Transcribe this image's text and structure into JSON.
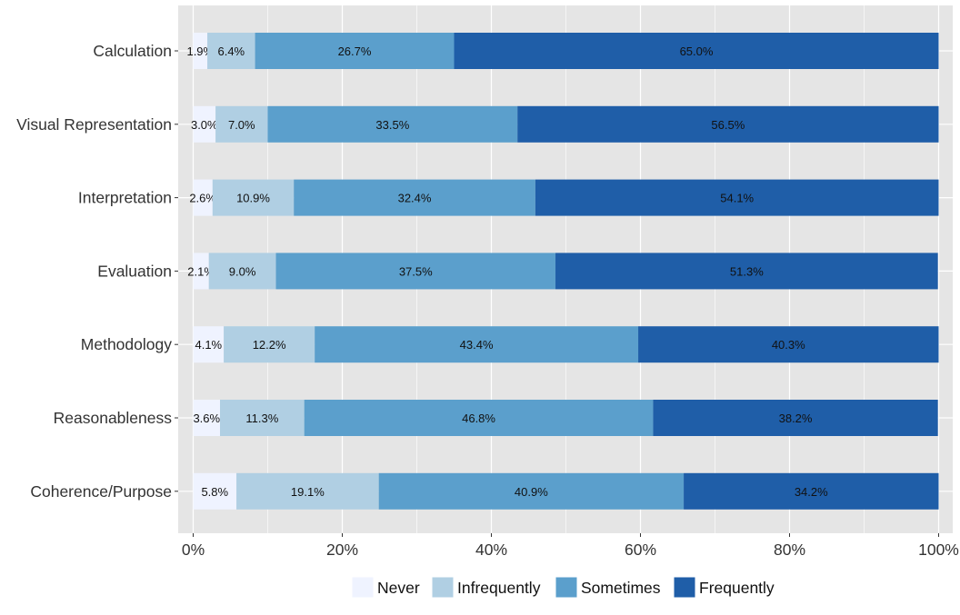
{
  "chart_data": {
    "type": "bar",
    "orientation": "horizontal",
    "stacked": true,
    "title": "",
    "xlabel": "",
    "ylabel": "",
    "xlim": [
      0,
      100
    ],
    "x_ticks": [
      "0%",
      "20%",
      "40%",
      "60%",
      "80%",
      "100%"
    ],
    "x_tick_values": [
      0,
      20,
      40,
      60,
      80,
      100
    ],
    "grid": true,
    "legend_position": "bottom",
    "categories": [
      "Calculation",
      "Visual Representation",
      "Interpretation",
      "Evaluation",
      "Methodology",
      "Reasonableness",
      "Coherence/Purpose"
    ],
    "series": [
      {
        "name": "Never",
        "color": "#eff3ff",
        "values": [
          1.9,
          3.0,
          2.6,
          2.1,
          4.1,
          3.6,
          5.8
        ],
        "labels": [
          "1.9%",
          "3.0%",
          "2.6%",
          "2.1%",
          "4.1%",
          "3.6%",
          "5.8%"
        ]
      },
      {
        "name": "Infrequently",
        "color": "#b0cfe3",
        "values": [
          6.4,
          7.0,
          10.9,
          9.0,
          12.2,
          11.3,
          19.1
        ],
        "labels": [
          "6.4%",
          "7.0%",
          "10.9%",
          "9.0%",
          "12.2%",
          "11.3%",
          "19.1%"
        ]
      },
      {
        "name": "Sometimes",
        "color": "#5b9fcc",
        "values": [
          26.7,
          33.5,
          32.4,
          37.5,
          43.4,
          46.8,
          40.9
        ],
        "labels": [
          "26.7%",
          "33.5%",
          "32.4%",
          "37.5%",
          "43.4%",
          "46.8%",
          "40.9%"
        ]
      },
      {
        "name": "Frequently",
        "color": "#1f5ea8",
        "values": [
          65.0,
          56.5,
          54.1,
          51.3,
          40.3,
          38.2,
          34.2
        ],
        "labels": [
          "65.0%",
          "56.5%",
          "54.1%",
          "51.3%",
          "40.3%",
          "38.2%",
          "34.2%"
        ]
      }
    ],
    "panel_color": "#e5e5e5",
    "grid_color": "#ffffff"
  }
}
